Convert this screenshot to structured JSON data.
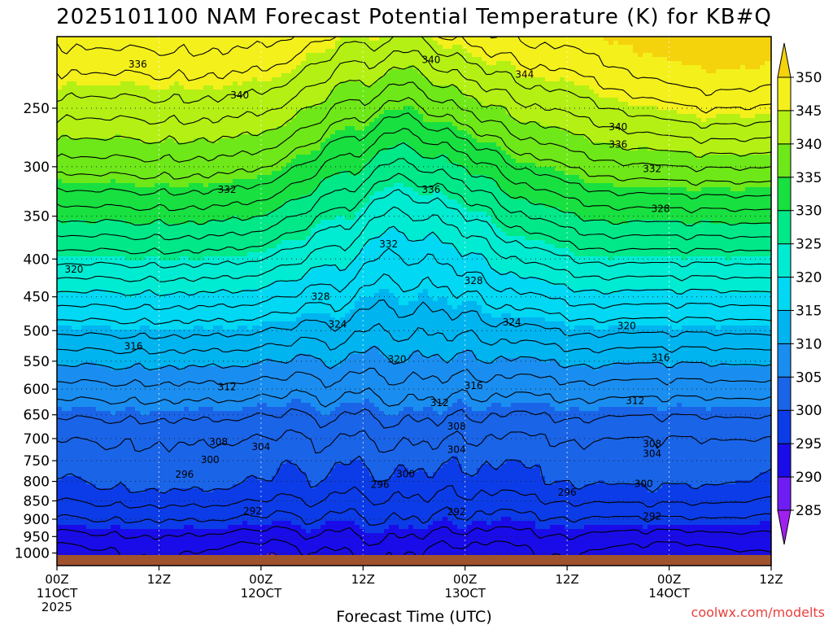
{
  "chart_data": {
    "type": "contour",
    "title": "2025101100 NAM Forecast Potential Temperature (K) for KB#Q",
    "xlabel": "Forecast Time (UTC)",
    "ylabel": "",
    "credit": "coolwx.com/modelts",
    "units": "K",
    "x_ticks": [
      {
        "hours": 0,
        "l1": "00Z",
        "l2": "11OCT",
        "l3": "2025"
      },
      {
        "hours": 12,
        "l1": "12Z",
        "l2": "",
        "l3": ""
      },
      {
        "hours": 24,
        "l1": "00Z",
        "l2": "12OCT",
        "l3": ""
      },
      {
        "hours": 36,
        "l1": "12Z",
        "l2": "",
        "l3": ""
      },
      {
        "hours": 48,
        "l1": "00Z",
        "l2": "13OCT",
        "l3": ""
      },
      {
        "hours": 60,
        "l1": "12Z",
        "l2": "",
        "l3": ""
      },
      {
        "hours": 72,
        "l1": "00Z",
        "l2": "14OCT",
        "l3": ""
      },
      {
        "hours": 84,
        "l1": "12Z",
        "l2": "",
        "l3": ""
      }
    ],
    "xlim_hours": [
      0,
      84
    ],
    "y_ticks_hpa": [
      250,
      300,
      350,
      400,
      450,
      500,
      550,
      600,
      650,
      700,
      750,
      800,
      850,
      900,
      950,
      1000
    ],
    "ylim_hpa": [
      1040,
      200
    ],
    "colorbar": {
      "levels": [
        285,
        290,
        295,
        300,
        305,
        310,
        315,
        320,
        325,
        330,
        335,
        340,
        345,
        350
      ],
      "labels": [
        "285",
        "290",
        "295",
        "300",
        "305",
        "310",
        "315",
        "320",
        "325",
        "330",
        "335",
        "340",
        "345",
        "350"
      ],
      "colors": [
        "#a020f0",
        "#6e1ef4",
        "#1a0ce8",
        "#0b3ce8",
        "#1a64e8",
        "#1a8ef0",
        "#00b4f0",
        "#00d8f4",
        "#00ecd2",
        "#00e888",
        "#18e040",
        "#6ee818",
        "#b4f014",
        "#f4f01c",
        "#f4d20c"
      ],
      "under_color": "#a020f0",
      "over_color": "#f4d20c"
    },
    "contour_levels": [
      290,
      292,
      294,
      296,
      298,
      300,
      302,
      304,
      306,
      308,
      310,
      312,
      314,
      316,
      318,
      320,
      322,
      324,
      326,
      328,
      330,
      332,
      334,
      336,
      338,
      340,
      342,
      344,
      346,
      348
    ],
    "contour_labels": [
      {
        "text": "336",
        "hours": 9.5,
        "hpa": 218
      },
      {
        "text": "340",
        "hours": 21.5,
        "hpa": 240
      },
      {
        "text": "340",
        "hours": 44,
        "hpa": 215
      },
      {
        "text": "344",
        "hours": 55,
        "hpa": 225
      },
      {
        "text": "340",
        "hours": 66,
        "hpa": 265
      },
      {
        "text": "336",
        "hours": 66,
        "hpa": 280
      },
      {
        "text": "332",
        "hours": 70,
        "hpa": 302
      },
      {
        "text": "332",
        "hours": 20,
        "hpa": 322
      },
      {
        "text": "336",
        "hours": 44,
        "hpa": 322
      },
      {
        "text": "328",
        "hours": 71,
        "hpa": 342
      },
      {
        "text": "332",
        "hours": 39,
        "hpa": 382
      },
      {
        "text": "320",
        "hours": 2,
        "hpa": 413
      },
      {
        "text": "328",
        "hours": 49,
        "hpa": 428
      },
      {
        "text": "328",
        "hours": 31,
        "hpa": 450
      },
      {
        "text": "324",
        "hours": 33,
        "hpa": 490
      },
      {
        "text": "324",
        "hours": 53.5,
        "hpa": 487
      },
      {
        "text": "320",
        "hours": 67,
        "hpa": 493
      },
      {
        "text": "316",
        "hours": 9,
        "hpa": 525
      },
      {
        "text": "320",
        "hours": 40,
        "hpa": 547
      },
      {
        "text": "316",
        "hours": 71,
        "hpa": 544
      },
      {
        "text": "316",
        "hours": 49,
        "hpa": 594
      },
      {
        "text": "312",
        "hours": 20,
        "hpa": 596
      },
      {
        "text": "312",
        "hours": 45,
        "hpa": 626
      },
      {
        "text": "312",
        "hours": 68,
        "hpa": 622
      },
      {
        "text": "308",
        "hours": 47,
        "hpa": 674
      },
      {
        "text": "308",
        "hours": 19,
        "hpa": 707
      },
      {
        "text": "304",
        "hours": 24,
        "hpa": 718
      },
      {
        "text": "308",
        "hours": 70,
        "hpa": 712
      },
      {
        "text": "304",
        "hours": 47,
        "hpa": 725
      },
      {
        "text": "304",
        "hours": 70,
        "hpa": 734
      },
      {
        "text": "300",
        "hours": 18,
        "hpa": 748
      },
      {
        "text": "296",
        "hours": 15,
        "hpa": 783
      },
      {
        "text": "300",
        "hours": 41,
        "hpa": 782
      },
      {
        "text": "296",
        "hours": 38,
        "hpa": 808
      },
      {
        "text": "300",
        "hours": 69,
        "hpa": 806
      },
      {
        "text": "296",
        "hours": 60,
        "hpa": 828
      },
      {
        "text": "292",
        "hours": 23,
        "hpa": 878
      },
      {
        "text": "292",
        "hours": 47,
        "hpa": 880
      },
      {
        "text": "292",
        "hours": 70,
        "hpa": 892
      }
    ]
  }
}
